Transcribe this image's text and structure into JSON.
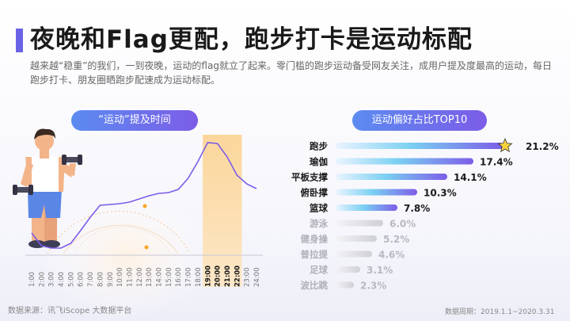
{
  "header": {
    "title": "夜晚和Flag更配，跑步打卡是运动标配",
    "subtitle": "越来越“稳重”的我们，一到夜晚，运动的flag就立了起来。零门槛的跑步运动备受网友关注，成用户提及度最高的运动，每日跑步打卡、朋友圈晒跑步配速成为运动标配。"
  },
  "footer": {
    "source": "数据来源：讯飞iScope 大数据平台",
    "period": "数据周期：2019.1.1~2020.3.31"
  },
  "colors": {
    "accent": "#6b63e6",
    "line": "#7c5ce8",
    "highlight": "#f5a623",
    "bar_top": "#7c5ce8",
    "bar_rest": "#d0d0d8"
  },
  "icons": [
    "star-icon",
    "athlete-illustration"
  ],
  "chart_data": [
    {
      "type": "line",
      "title": "“运动”提及时间",
      "categories": [
        "1:00",
        "2:00",
        "3:00",
        "4:00",
        "5:00",
        "6:00",
        "7:00",
        "8:00",
        "9:00",
        "10:00",
        "11:00",
        "12:00",
        "13:00",
        "14:00",
        "15:00",
        "16:00",
        "17:00",
        "18:00",
        "19:00",
        "20:00",
        "21:00",
        "22:00",
        "23:00",
        "24:00"
      ],
      "values": [
        28,
        12,
        9,
        9,
        15,
        31,
        48,
        63,
        64,
        65,
        67,
        71,
        75,
        78,
        79,
        83,
        97,
        118,
        142,
        141,
        124,
        101,
        90,
        84
      ],
      "ylim": [
        0,
        150
      ],
      "highlight_categories": [
        "19:00",
        "20:00",
        "21:00",
        "22:00"
      ],
      "grid": false
    },
    {
      "type": "bar",
      "orientation": "horizontal",
      "title": "运动偏好占比TOP10",
      "categories": [
        "跑步",
        "瑜伽",
        "平板支撑",
        "俯卧撑",
        "篮球",
        "游泳",
        "健身操",
        "普拉提",
        "足球",
        "波比跳"
      ],
      "values": [
        21.2,
        17.4,
        14.1,
        10.3,
        7.8,
        6.0,
        5.2,
        4.6,
        3.1,
        2.3
      ],
      "value_labels": [
        "21.2%",
        "17.4%",
        "14.1%",
        "10.3%",
        "7.8%",
        "6.0%",
        "5.2%",
        "4.6%",
        "3.1%",
        "2.3%"
      ],
      "highlight_top": 5,
      "xlim": [
        0,
        21.2
      ],
      "grid": false
    }
  ]
}
